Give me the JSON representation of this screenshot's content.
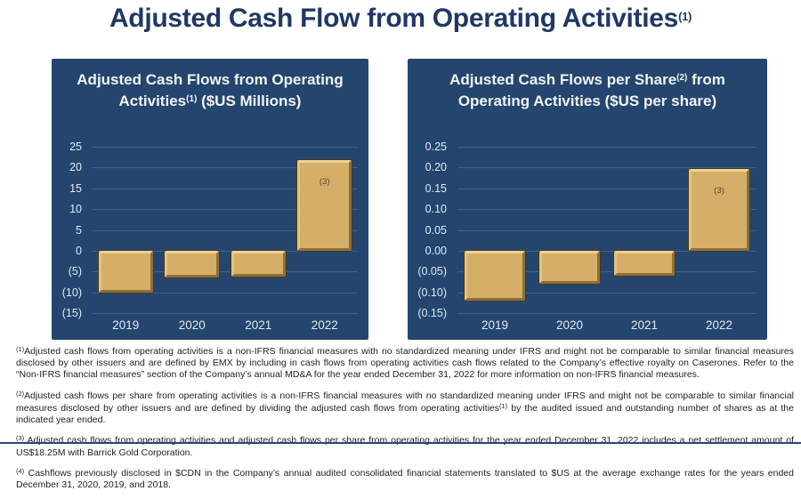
{
  "page": {
    "title": {
      "text": "Adjusted Cash Flow from Operating Activities",
      "superscript": "(1)"
    }
  },
  "colors": {
    "title_navy": "#1F3864",
    "panel_background": "#24466E",
    "bar_fill": "#D5AF68",
    "bar_bevel_light": "#ECD295",
    "bar_bevel_dark": "#8D6F3A",
    "axis_label": "#E3E8F0",
    "footnote_text": "#1F1F1F",
    "bottom_rule": "#24477D"
  },
  "charts": [
    {
      "title": {
        "part1": "Adjusted Cash Flows from Operating Activities",
        "sup": "(1)",
        "part2": " ($US Millions)"
      }
    },
    {
      "title": {
        "part1": "Adjusted Cash Flows per Share",
        "sup": "(2)",
        "part2": " from Operating Activities ($US per share)"
      }
    }
  ],
  "chart_data": [
    {
      "type": "bar",
      "title": "Adjusted Cash Flows from Operating Activities(1) ($US Millions)",
      "categories": [
        "2019",
        "2020",
        "2021",
        "2022"
      ],
      "values": [
        -10,
        -6.5,
        -6.3,
        21.8
      ],
      "ylim": [
        -15,
        25
      ],
      "ytick_step": 5,
      "ytick_labels": [
        "25",
        "20",
        "15",
        "10",
        "5",
        "0",
        "(5)",
        "(10)",
        "(15)"
      ],
      "grid": true,
      "legend": false,
      "annotation": {
        "bar_index": 3,
        "text": "(3)"
      }
    },
    {
      "type": "bar",
      "title": "Adjusted Cash Flows per Share(2) from Operating Activities ($US per share)",
      "categories": [
        "2019",
        "2020",
        "2021",
        "2022"
      ],
      "values": [
        -0.12,
        -0.08,
        -0.06,
        0.197
      ],
      "ylim": [
        -0.15,
        0.25
      ],
      "ytick_step": 0.05,
      "ytick_labels": [
        "0.25",
        "0.20",
        "0.15",
        "0.10",
        "0.05",
        "0.00",
        "(0.05)",
        "(0.10)",
        "(0.15)"
      ],
      "grid": true,
      "legend": false,
      "annotation": {
        "bar_index": 3,
        "text": "(3)"
      }
    }
  ],
  "footnotes": [
    {
      "marker": "(1)",
      "segments": [
        {
          "text": "Adjusted cash flows from operating activities is a non-IFRS financial measures with no standardized meaning under IFRS and might not be comparable to similar financial measures disclosed by other issuers and are defined by EMX by including in cash flows from operating activities cash flows related to the Company’s effective royalty on Caserones. Refer to the “Non-IFRS financial measures” section of the Company’s annual MD&A for the year ended December 31, 2022 for more information on non-IFRS financial measures."
        }
      ]
    },
    {
      "marker": "(2)",
      "segments": [
        {
          "text": "Adjusted cash flows per share from operating activities is a non-IFRS financial measures with no standardized meaning under IFRS and might not be comparable to similar financial measures disclosed by other issuers and are defined by dividing the adjusted cash flows from operating activities"
        },
        {
          "sup": "(1)"
        },
        {
          "text": " by the audited issued and outstanding number of shares as at the indicated year ended."
        }
      ]
    },
    {
      "marker": "(3)",
      "segments": [
        {
          "text": " Adjusted cash flows from operating activities and adjusted cash flows per share from operating activities for the year ended December 31, 2022 includes a net settlement amount of US$18.25M with Barrick Gold Corporation."
        }
      ]
    },
    {
      "marker": "(4)",
      "segments": [
        {
          "text": " Cashflows previously disclosed in $CDN in the Company’s annual audited consolidated financial statements translated to $US at the average exchange rates for the years ended December 31, 2020, 2019, and 2018."
        }
      ]
    }
  ]
}
